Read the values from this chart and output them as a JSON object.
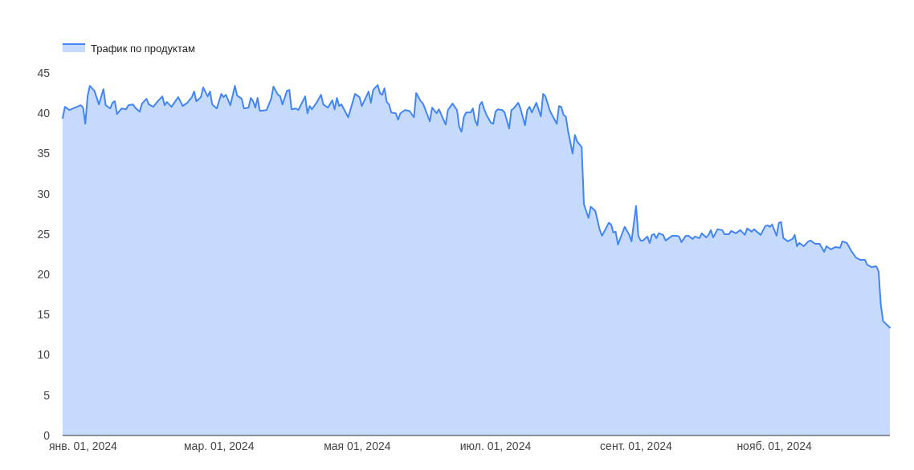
{
  "chart_data": {
    "type": "area",
    "legend": "top left",
    "grid": false,
    "xlim": [
      "2023-12-23",
      "2024-12-22"
    ],
    "xticks": [
      {
        "value": "2024-01-01",
        "label": "янв. 01, 2024"
      },
      {
        "value": "2024-03-01",
        "label": "мар. 01, 2024"
      },
      {
        "value": "2024-05-01",
        "label": "мая 01, 2024"
      },
      {
        "value": "2024-07-01",
        "label": "июл. 01, 2024"
      },
      {
        "value": "2024-09-01",
        "label": "сент. 01, 2024"
      },
      {
        "value": "2024-11-01",
        "label": "нояб. 01, 2024"
      }
    ],
    "ylim": [
      0,
      45
    ],
    "yticks": [
      0,
      5,
      10,
      15,
      20,
      25,
      30,
      35,
      40,
      45
    ],
    "x": [
      "2023-12-23",
      "2023-12-24",
      "2023-12-26",
      "2023-12-31",
      "2024-01-01",
      "2024-01-02",
      "2024-01-03",
      "2024-01-04",
      "2024-01-06",
      "2024-01-08",
      "2024-01-10",
      "2024-01-11",
      "2024-01-13",
      "2024-01-14",
      "2024-01-15",
      "2024-01-16",
      "2024-01-18",
      "2024-01-20",
      "2024-01-21",
      "2024-01-23",
      "2024-01-24",
      "2024-01-26",
      "2024-01-27",
      "2024-01-29",
      "2024-01-30",
      "2024-02-01",
      "2024-02-03",
      "2024-02-05",
      "2024-02-06",
      "2024-02-07",
      "2024-02-09",
      "2024-02-12",
      "2024-02-14",
      "2024-02-16",
      "2024-02-18",
      "2024-02-19",
      "2024-02-20",
      "2024-02-22",
      "2024-02-23",
      "2024-02-25",
      "2024-02-26",
      "2024-02-27",
      "2024-02-29",
      "2024-03-02",
      "2024-03-03",
      "2024-03-04",
      "2024-03-06",
      "2024-03-08",
      "2024-03-09",
      "2024-03-11",
      "2024-03-12",
      "2024-03-14",
      "2024-03-15",
      "2024-03-16",
      "2024-03-17",
      "2024-03-18",
      "2024-03-19",
      "2024-03-22",
      "2024-03-24",
      "2024-03-25",
      "2024-03-27",
      "2024-03-28",
      "2024-03-29",
      "2024-03-31",
      "2024-04-01",
      "2024-04-02",
      "2024-04-04",
      "2024-04-05",
      "2024-04-08",
      "2024-04-09",
      "2024-04-10",
      "2024-04-11",
      "2024-04-13",
      "2024-04-15",
      "2024-04-16",
      "2024-04-18",
      "2024-04-20",
      "2024-04-21",
      "2024-04-22",
      "2024-04-23",
      "2024-04-24",
      "2024-04-27",
      "2024-04-30",
      "2024-05-02",
      "2024-05-03",
      "2024-05-06",
      "2024-05-07",
      "2024-05-08",
      "2024-05-10",
      "2024-05-11",
      "2024-05-12",
      "2024-05-13",
      "2024-05-14",
      "2024-05-15",
      "2024-05-16",
      "2024-05-18",
      "2024-05-19",
      "2024-05-20",
      "2024-05-22",
      "2024-05-24",
      "2024-05-26",
      "2024-05-27",
      "2024-05-29",
      "2024-05-30",
      "2024-06-02",
      "2024-06-03",
      "2024-06-05",
      "2024-06-06",
      "2024-06-09",
      "2024-06-10",
      "2024-06-12",
      "2024-06-14",
      "2024-06-15",
      "2024-06-16",
      "2024-06-17",
      "2024-06-18",
      "2024-06-20",
      "2024-06-21",
      "2024-06-22",
      "2024-06-23",
      "2024-06-24",
      "2024-06-25",
      "2024-06-26",
      "2024-06-27",
      "2024-06-29",
      "2024-06-30",
      "2024-07-01",
      "2024-07-02",
      "2024-07-04",
      "2024-07-05",
      "2024-07-07",
      "2024-07-08",
      "2024-07-09",
      "2024-07-11",
      "2024-07-12",
      "2024-07-14",
      "2024-07-15",
      "2024-07-16",
      "2024-07-17",
      "2024-07-19",
      "2024-07-21",
      "2024-07-22",
      "2024-07-23",
      "2024-07-25",
      "2024-07-28",
      "2024-07-29",
      "2024-07-30",
      "2024-07-31",
      "2024-08-01",
      "2024-08-02",
      "2024-08-04",
      "2024-08-05",
      "2024-08-06",
      "2024-08-08",
      "2024-08-09",
      "2024-08-11",
      "2024-08-12",
      "2024-08-14",
      "2024-08-16",
      "2024-08-17",
      "2024-08-20",
      "2024-08-21",
      "2024-08-22",
      "2024-08-23",
      "2024-08-24",
      "2024-08-27",
      "2024-08-29",
      "2024-08-30",
      "2024-09-01",
      "2024-09-02",
      "2024-09-03",
      "2024-09-04",
      "2024-09-06",
      "2024-09-07",
      "2024-09-08",
      "2024-09-09",
      "2024-09-10",
      "2024-09-11",
      "2024-09-13",
      "2024-09-14",
      "2024-09-17",
      "2024-09-19",
      "2024-09-20",
      "2024-09-21",
      "2024-09-23",
      "2024-09-24",
      "2024-09-26",
      "2024-09-27",
      "2024-09-29",
      "2024-09-30",
      "2024-10-02",
      "2024-10-03",
      "2024-10-04",
      "2024-10-05",
      "2024-10-07",
      "2024-10-09",
      "2024-10-10",
      "2024-10-12",
      "2024-10-13",
      "2024-10-15",
      "2024-10-17",
      "2024-10-19",
      "2024-10-20",
      "2024-10-22",
      "2024-10-23",
      "2024-10-26",
      "2024-10-28",
      "2024-10-29",
      "2024-10-30",
      "2024-10-31",
      "2024-11-02",
      "2024-11-03",
      "2024-11-04",
      "2024-11-05",
      "2024-11-07",
      "2024-11-09",
      "2024-11-10",
      "2024-11-11",
      "2024-11-12",
      "2024-11-14",
      "2024-11-16",
      "2024-11-17",
      "2024-11-19",
      "2024-11-21",
      "2024-11-23",
      "2024-11-24",
      "2024-11-26",
      "2024-11-28",
      "2024-11-30",
      "2024-12-01",
      "2024-12-03",
      "2024-12-05",
      "2024-12-07",
      "2024-12-09",
      "2024-12-11",
      "2024-12-12",
      "2024-12-14",
      "2024-12-16",
      "2024-12-17",
      "2024-12-18",
      "2024-12-19",
      "2024-12-22"
    ],
    "series": [
      {
        "name": "Трафик по продуктам",
        "color": "#4285f4",
        "values": [
          39.4,
          40.8,
          40.4,
          41.0,
          40.7,
          38.7,
          42.1,
          43.4,
          42.8,
          41.1,
          43.0,
          41.0,
          40.6,
          41.3,
          41.5,
          39.9,
          40.6,
          40.5,
          41.0,
          41.1,
          40.7,
          40.2,
          41.2,
          41.8,
          41.1,
          40.8,
          41.5,
          42.1,
          41.0,
          41.4,
          40.8,
          42.0,
          40.9,
          41.3,
          42.0,
          42.7,
          41.5,
          42.0,
          43.2,
          42.1,
          42.7,
          41.1,
          40.6,
          42.4,
          42.0,
          42.3,
          41.0,
          43.4,
          42.2,
          41.8,
          40.6,
          40.7,
          41.9,
          41.5,
          40.7,
          41.9,
          40.3,
          40.4,
          41.8,
          43.3,
          42.3,
          42.1,
          41.1,
          42.8,
          42.9,
          40.5,
          40.6,
          40.4,
          42.1,
          40.0,
          40.9,
          40.5,
          41.3,
          42.3,
          41.1,
          40.7,
          41.6,
          40.5,
          41.9,
          40.9,
          41.1,
          39.5,
          42.4,
          42.0,
          40.9,
          42.7,
          41.3,
          42.9,
          43.5,
          42.5,
          42.3,
          43.1,
          41.4,
          41.1,
          40.1,
          40.0,
          39.2,
          40.0,
          40.4,
          40.3,
          39.5,
          42.5,
          41.5,
          41.2,
          39.0,
          40.7,
          40.0,
          40.5,
          38.6,
          40.4,
          41.2,
          40.4,
          38.3,
          37.7,
          39.5,
          40.1,
          40.1,
          40.6,
          39.1,
          38.5,
          41.0,
          41.4,
          40.5,
          39.8,
          38.8,
          38.7,
          40.2,
          40.5,
          40.4,
          40.1,
          38.1,
          40.4,
          40.6,
          41.3,
          40.6,
          38.5,
          40.4,
          40.8,
          40.1,
          41.3,
          39.6,
          42.4,
          42.1,
          40.3,
          38.7,
          40.9,
          40.8,
          39.8,
          39.6,
          37.8,
          35.0,
          37.3,
          36.5,
          35.8,
          28.7,
          27.0,
          28.4,
          27.9,
          25.5,
          24.8,
          26.4,
          26.2,
          25.2,
          25.3,
          23.7,
          25.9,
          24.9,
          24.1,
          28.5,
          24.8,
          24.2,
          24.2,
          24.7,
          23.9,
          24.9,
          25.0,
          24.5,
          25.1,
          24.9,
          24.2,
          24.8,
          24.8,
          24.7,
          24.0,
          24.8,
          24.8,
          24.4,
          24.7,
          24.5,
          25.1,
          24.6,
          24.9,
          25.5,
          24.6,
          25.6,
          25.5,
          25.0,
          25.0,
          25.4,
          25.1,
          25.5,
          24.9,
          25.7,
          25.3,
          25.6,
          24.9,
          26.0,
          26.1,
          25.9,
          26.2,
          24.8,
          26.4,
          26.5,
          24.5,
          24.1,
          24.4,
          24.9,
          23.5,
          23.9,
          23.5,
          24.1,
          24.2,
          23.8,
          23.8,
          22.8,
          23.5,
          23.1,
          23.4,
          23.3,
          24.1,
          23.9,
          22.9,
          22.1,
          21.8,
          21.8,
          21.2,
          20.9,
          21.0,
          20.4,
          16.2,
          14.2,
          13.4
        ]
      }
    ]
  }
}
